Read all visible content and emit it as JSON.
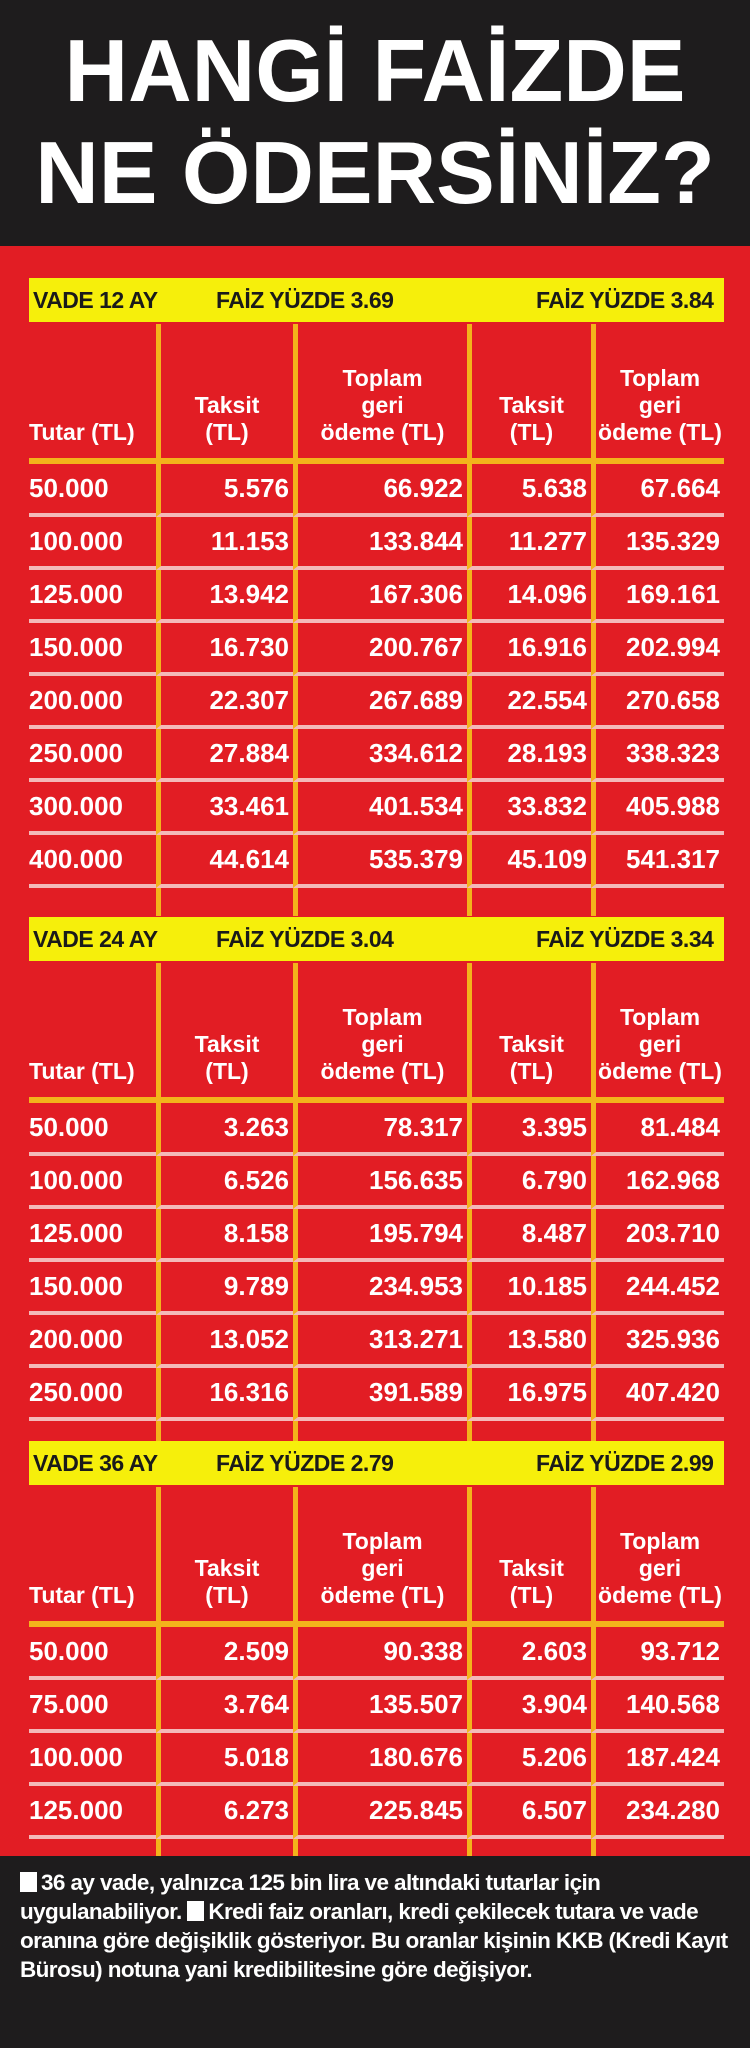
{
  "title": {
    "line1": "HANGİ FAİZDE",
    "line2": "NE ÖDERSİNİZ?"
  },
  "colors": {
    "background": "#e21d24",
    "band": "#f6ef0b",
    "divider": "#f3b31b",
    "dark": "#1e1c1d"
  },
  "headers": {
    "tutar": "Tutar (TL)",
    "taksit": [
      "Taksit",
      "(TL)"
    ],
    "toplam": [
      "Toplam",
      "geri",
      "ödeme (TL)"
    ]
  },
  "sections": [
    {
      "vade": "VADE 12 AY",
      "rate1": "FAİZ YÜZDE 3.69",
      "rate2": "FAİZ YÜZDE 3.84",
      "rows": [
        [
          "50.000",
          "5.576",
          "66.922",
          "5.638",
          "67.664"
        ],
        [
          "100.000",
          "11.153",
          "133.844",
          "11.277",
          "135.329"
        ],
        [
          "125.000",
          "13.942",
          "167.306",
          "14.096",
          "169.161"
        ],
        [
          "150.000",
          "16.730",
          "200.767",
          "16.916",
          "202.994"
        ],
        [
          "200.000",
          "22.307",
          "267.689",
          "22.554",
          "270.658"
        ],
        [
          "250.000",
          "27.884",
          "334.612",
          "28.193",
          "338.323"
        ],
        [
          "300.000",
          "33.461",
          "401.534",
          "33.832",
          "405.988"
        ],
        [
          "400.000",
          "44.614",
          "535.379",
          "45.109",
          "541.317"
        ]
      ]
    },
    {
      "vade": "VADE 24 AY",
      "rate1": "FAİZ YÜZDE 3.04",
      "rate2": "FAİZ YÜZDE 3.34",
      "rows": [
        [
          "50.000",
          "3.263",
          "78.317",
          "3.395",
          "81.484"
        ],
        [
          "100.000",
          "6.526",
          "156.635",
          "6.790",
          "162.968"
        ],
        [
          "125.000",
          "8.158",
          "195.794",
          "8.487",
          "203.710"
        ],
        [
          "150.000",
          "9.789",
          "234.953",
          "10.185",
          "244.452"
        ],
        [
          "200.000",
          "13.052",
          "313.271",
          "13.580",
          "325.936"
        ],
        [
          "250.000",
          "16.316",
          "391.589",
          "16.975",
          "407.420"
        ]
      ]
    },
    {
      "vade": "VADE 36 AY",
      "rate1": "FAİZ YÜZDE 2.79",
      "rate2": "FAİZ YÜZDE 2.99",
      "rows": [
        [
          "50.000",
          "2.509",
          "90.338",
          "2.603",
          "93.712"
        ],
        [
          "75.000",
          "3.764",
          "135.507",
          "3.904",
          "140.568"
        ],
        [
          "100.000",
          "5.018",
          "180.676",
          "5.206",
          "187.424"
        ],
        [
          "125.000",
          "6.273",
          "225.845",
          "6.507",
          "234.280"
        ]
      ]
    }
  ],
  "footer": {
    "note1": "36 ay vade, yalnızca 125 bin lira ve altındaki tutarlar için uygulanabiliyor.",
    "note2": "Kredi faiz oranları, kredi çekilecek tutara ve vade oranına göre değişiklik gösteriyor. Bu oranlar kişinin KKB (Kredi Kayıt Bürosu) notuna yani kredibilitesine göre değişiyor."
  }
}
